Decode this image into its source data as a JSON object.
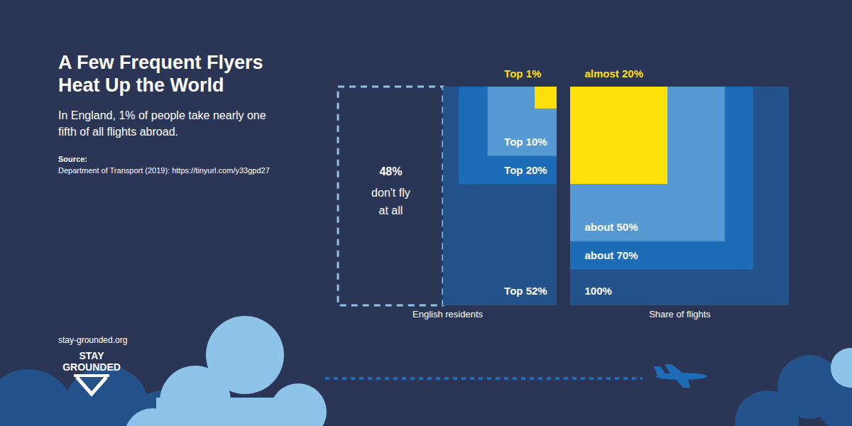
{
  "title": "A Few Frequent Flyers Heat Up the World",
  "subtitle": "In England, 1% of people take nearly one fifth of all flights abroad.",
  "source_label": "Source:",
  "source": "Department of Transport (2019): https://tinyurl.com/y33gpd27",
  "website": "stay-grounded.org",
  "logo": [
    "STAY",
    "GROUNDED"
  ],
  "chart_data": [
    {
      "type": "square",
      "xlabel": "English residents",
      "tick_labels": false,
      "series": [
        {
          "name": "don't fly at all",
          "values": [
            48
          ],
          "value_labels": [
            "48%"
          ],
          "color": "#8ec3ea",
          "line_style": "dashed"
        },
        {
          "name": "Top 52%",
          "values": [
            52
          ],
          "color": "#24528a"
        },
        {
          "name": "Top 20%",
          "values": [
            20
          ],
          "color": "#1c6cb8"
        },
        {
          "name": "Top 10%",
          "values": [
            10
          ],
          "color": "#5799d3"
        },
        {
          "name": "Top 1%",
          "values": [
            1
          ],
          "color": "#ffe10a"
        }
      ]
    },
    {
      "type": "square",
      "xlabel": "Share of flights",
      "tick_labels": false,
      "series": [
        {
          "values": [
            100
          ],
          "value_labels": [
            "100%"
          ],
          "color": "#24528a"
        },
        {
          "values": [
            70
          ],
          "value_labels": [
            "about 70%"
          ],
          "color": "#1c6cb8"
        },
        {
          "values": [
            50
          ],
          "value_labels": [
            "about 50%"
          ],
          "color": "#5799d3"
        },
        {
          "values": [
            19.8
          ],
          "value_labels": [
            "almost 20%"
          ],
          "color": "#ffe10a"
        }
      ]
    }
  ]
}
